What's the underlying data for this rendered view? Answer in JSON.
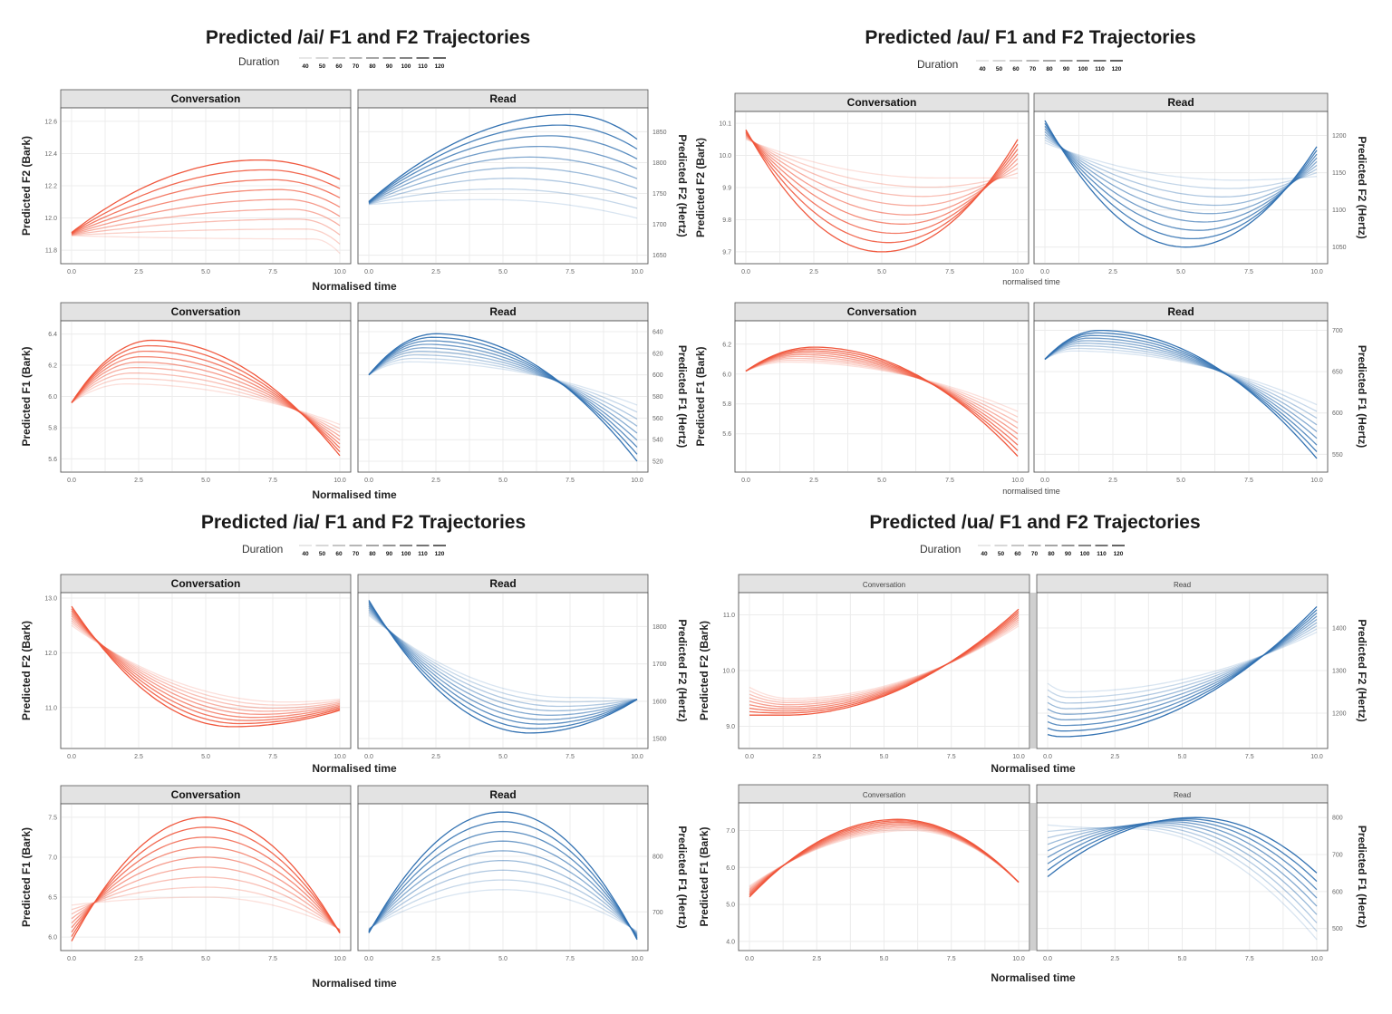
{
  "duration_legend": {
    "label": "Duration",
    "values": [
      "40",
      "50",
      "60",
      "70",
      "80",
      "90",
      "100",
      "110",
      "120"
    ]
  },
  "colors": {
    "conversation": "#f0553a",
    "read": "#2f6fb0"
  },
  "chart_data": [
    {
      "type": "line",
      "title": "Predicted /ai/ F1 and F2 Trajectories",
      "xlabel": "Normalised time",
      "x_ticks": [
        "0.0",
        "2.5",
        "5.0",
        "7.5",
        "10.0"
      ],
      "series_by": "Duration",
      "panels": [
        {
          "facet": "Conversation",
          "ylabel": "Predicted F2 (Bark)",
          "y_ticks": [
            "11.8",
            "12.0",
            "12.2",
            "12.4",
            "12.6"
          ],
          "ylim": [
            11.75,
            12.65
          ],
          "curves": {
            "start": [
              11.89,
              11.91
            ],
            "peak_t": [
              9,
              7
            ],
            "peak": [
              11.87,
              12.36
            ],
            "end": [
              11.78,
              12.24
            ]
          }
        },
        {
          "facet": "Read",
          "ylabel": "Predicted F2 (Hertz)",
          "y_ticks": [
            "1650",
            "1700",
            "1750",
            "1800",
            "1850"
          ],
          "ylim": [
            1645,
            1880
          ],
          "curves": {
            "start": [
              1732,
              1737
            ],
            "peak_t": [
              4.5,
              7.5
            ],
            "peak": [
              1740,
              1878
            ],
            "end": [
              1710,
              1838
            ]
          }
        },
        {
          "facet": "Conversation",
          "ylabel": "Predicted F1 (Bark)",
          "y_ticks": [
            "5.6",
            "5.8",
            "6.0",
            "6.2",
            "6.4"
          ],
          "ylim": [
            5.55,
            6.45
          ],
          "curves": {
            "start": [
              5.96,
              5.96
            ],
            "peak_t": [
              2,
              3
            ],
            "peak": [
              6.08,
              6.36
            ],
            "end": [
              5.82,
              5.62
            ]
          }
        },
        {
          "facet": "Read",
          "ylabel": "Predicted F1 (Hertz)",
          "y_ticks": [
            "520",
            "540",
            "560",
            "580",
            "600",
            "620",
            "640"
          ],
          "ylim": [
            515,
            645
          ],
          "curves": {
            "start": [
              600,
              600
            ],
            "peak_t": [
              1.5,
              2.5
            ],
            "peak": [
              612,
              638
            ],
            "end": [
              572,
              520
            ]
          }
        }
      ]
    },
    {
      "type": "line",
      "title": "Predicted /au/ F1 and F2 Trajectories",
      "xlabel": "normalised time",
      "x_ticks": [
        "0.0",
        "2.5",
        "5.0",
        "7.5",
        "10.0"
      ],
      "series_by": "Duration",
      "panels": [
        {
          "facet": "Conversation",
          "ylabel": "Predicted F2 (Bark)",
          "y_ticks": [
            "9.7",
            "9.8",
            "9.9",
            "10.0",
            "10.1"
          ],
          "ylim": [
            9.68,
            10.12
          ],
          "curves": {
            "start": [
              10.05,
              10.08
            ],
            "trough_t": [
              7,
              5
            ],
            "trough": [
              9.93,
              9.7
            ],
            "end": [
              9.93,
              10.05
            ]
          }
        },
        {
          "facet": "Read",
          "ylabel": "Predicted F2 (Hertz)",
          "y_ticks": [
            "1050",
            "1100",
            "1150",
            "1200"
          ],
          "ylim": [
            1035,
            1225
          ],
          "curves": {
            "start": [
              1190,
              1220
            ],
            "trough_t": [
              7,
              5.2
            ],
            "trough": [
              1140,
              1050
            ],
            "end": [
              1145,
              1185
            ]
          }
        },
        {
          "facet": "Conversation",
          "ylabel": "Predicted F1 (Bark)",
          "y_ticks": [
            "5.6",
            "5.8",
            "6.0",
            "6.2"
          ],
          "ylim": [
            5.38,
            6.32
          ],
          "curves": {
            "start": [
              6.02,
              6.02
            ],
            "peak_t": [
              1.5,
              2.5
            ],
            "peak": [
              6.08,
              6.18
            ],
            "end": [
              5.75,
              5.45
            ]
          }
        },
        {
          "facet": "Read",
          "ylabel": "Predicted F1 (Hertz)",
          "y_ticks": [
            "550",
            "600",
            "650",
            "700"
          ],
          "ylim": [
            535,
            705
          ],
          "curves": {
            "start": [
              665,
              665
            ],
            "peak_t": [
              1,
              2
            ],
            "peak": [
              675,
              700
            ],
            "end": [
              610,
              545
            ]
          }
        }
      ]
    },
    {
      "type": "line",
      "title": "Predicted /ia/ F1 and F2 Trajectories",
      "xlabel": "Normalised time",
      "x_ticks": [
        "0.0",
        "2.5",
        "5.0",
        "7.5",
        "10.0"
      ],
      "series_by": "Duration",
      "panels": [
        {
          "facet": "Conversation",
          "ylabel": "Predicted F2 (Bark)",
          "y_ticks": [
            "11.0",
            "12.0",
            "13.0"
          ],
          "ylim": [
            10.35,
            13.0
          ],
          "curves": {
            "start": [
              12.5,
              12.85
            ],
            "trough_t": [
              8,
              6
            ],
            "trough": [
              11.1,
              10.65
            ],
            "end": [
              11.15,
              10.95
            ]
          }
        },
        {
          "facet": "Read",
          "ylabel": "Predicted F2 (Hertz)",
          "y_ticks": [
            "1500",
            "1600",
            "1700",
            "1800"
          ],
          "ylim": [
            1488,
            1876
          ],
          "curves": {
            "start": [
              1830,
              1870
            ],
            "trough_t": [
              7.5,
              6
            ],
            "trough": [
              1610,
              1515
            ],
            "end": [
              1605,
              1605
            ]
          }
        },
        {
          "facet": "Conversation",
          "ylabel": "Predicted F1 (Bark)",
          "y_ticks": [
            "6.0",
            "6.5",
            "7.0",
            "7.5"
          ],
          "ylim": [
            5.9,
            7.6
          ],
          "curves": {
            "start": [
              6.4,
              5.95
            ],
            "peak_t": [
              5,
              5
            ],
            "peak": [
              6.5,
              7.5
            ],
            "end": [
              6.1,
              6.05
            ]
          }
        },
        {
          "facet": "Read",
          "ylabel": "Predicted F1 (Hertz)",
          "y_ticks": [
            "700",
            "800"
          ],
          "ylim": [
            640,
            885
          ],
          "curves": {
            "start": [
              670,
              662
            ],
            "peak_t": [
              5,
              5
            ],
            "peak": [
              740,
              880
            ],
            "end": [
              665,
              650
            ]
          }
        }
      ]
    },
    {
      "type": "line",
      "title": "Predicted /ua/ F1 and F2 Trajectories",
      "xlabel": "Normalised time",
      "x_ticks": [
        "0.0",
        "2.5",
        "5.0",
        "7.5",
        "10.0"
      ],
      "series_by": "Duration",
      "panels": [
        {
          "facet": "Conversation",
          "ylabel": "Predicted F2 (Bark)",
          "y_ticks": [
            "9.0",
            "10.0",
            "11.0"
          ],
          "ylim": [
            8.7,
            11.3
          ],
          "curves": {
            "start": [
              9.7,
              9.2
            ],
            "trough_t": [
              1.5,
              1.3
            ],
            "trough": [
              9.5,
              9.2
            ],
            "end": [
              10.8,
              11.1
            ]
          }
        },
        {
          "facet": "Read",
          "ylabel": "Predicted F2 (Hertz)",
          "y_ticks": [
            "1200",
            "1300",
            "1400"
          ],
          "ylim": [
            1130,
            1470
          ],
          "curves": {
            "start": [
              1270,
              1150
            ],
            "trough_t": [
              0.8,
              0.5
            ],
            "trough": [
              1250,
              1145
            ],
            "end": [
              1390,
              1450
            ]
          }
        },
        {
          "facet": "Conversation",
          "ylabel": "Predicted F1 (Bark)",
          "y_ticks": [
            "4.0",
            "5.0",
            "6.0",
            "7.0"
          ],
          "ylim": [
            3.9,
            7.6
          ],
          "curves": {
            "start": [
              5.5,
              5.2
            ],
            "peak_t": [
              6,
              5.5
            ],
            "peak": [
              7.0,
              7.3
            ],
            "end": [
              5.6,
              5.6
            ]
          }
        },
        {
          "facet": "Read",
          "ylabel": "Predicted F1 (Hertz)",
          "y_ticks": [
            "500",
            "600",
            "700",
            "800"
          ],
          "ylim": [
            455,
            825
          ],
          "curves": {
            "start": [
              780,
              640
            ],
            "peak_t": [
              3,
              5.5
            ],
            "peak": [
              770,
              800
            ],
            "end": [
              470,
              650
            ]
          }
        }
      ]
    }
  ]
}
